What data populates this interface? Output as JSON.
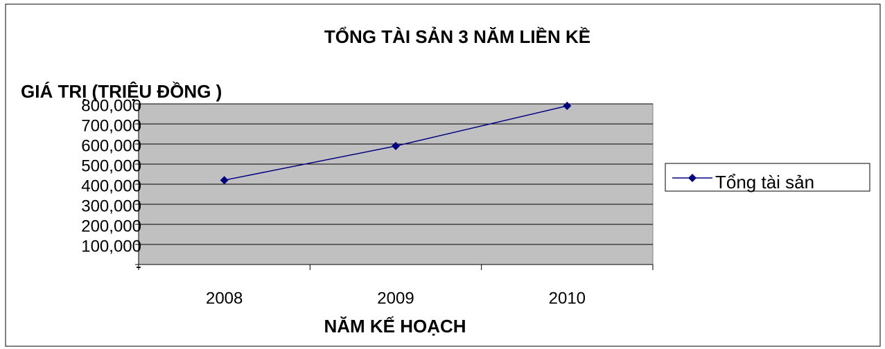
{
  "chart_data": {
    "type": "line",
    "title": "TỔNG TÀI SẢN 3 NĂM LIỀN KỀ",
    "y_axis_label": "GIÁ TRỊ (TRIỆU ĐỒNG )",
    "x_axis_label": "NĂM KẾ HOẠCH",
    "categories": [
      "2008",
      "2009",
      "2010"
    ],
    "series": [
      {
        "name": "Tổng tài sản",
        "color": "#000080",
        "values": [
          420000,
          590000,
          790000
        ]
      }
    ],
    "ylim": [
      0,
      800000
    ],
    "yticks": [
      {
        "value": 0,
        "label": "-"
      },
      {
        "value": 100000,
        "label": "100,000"
      },
      {
        "value": 200000,
        "label": "200,000"
      },
      {
        "value": 300000,
        "label": "300,000"
      },
      {
        "value": 400000,
        "label": "400,000"
      },
      {
        "value": 500000,
        "label": "500,000"
      },
      {
        "value": 600000,
        "label": "600,000"
      },
      {
        "value": 700000,
        "label": "700,000"
      },
      {
        "value": 800000,
        "label": "800,000"
      }
    ],
    "grid": true,
    "legend": "right"
  }
}
